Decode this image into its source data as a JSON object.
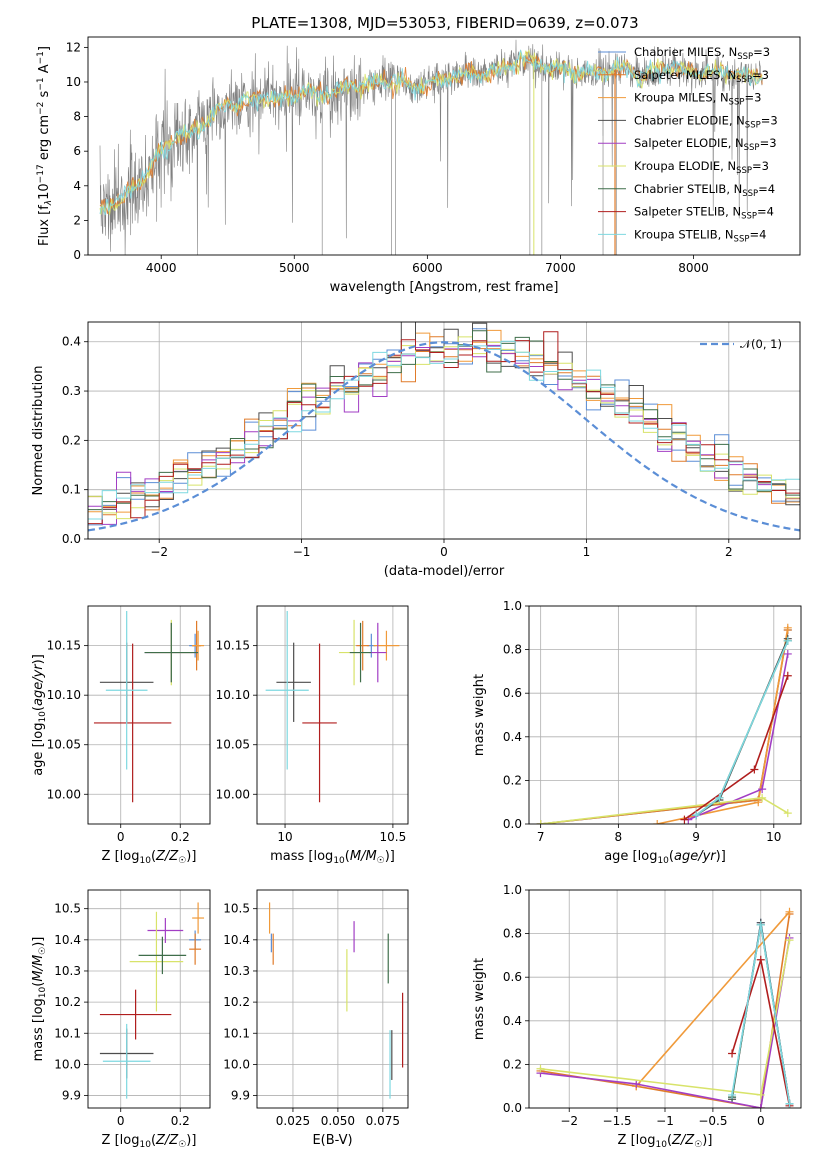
{
  "figure": {
    "title": "PLATE=1308, MJD=53053, FIBERID=0639, z=0.073"
  },
  "series": [
    {
      "name": "Chabrier MILES, N$_{SSP}$=3",
      "color": "#5b8ed6"
    },
    {
      "name": "Salpeter MILES, N$_{SSP}$=3",
      "color": "#e07b2a"
    },
    {
      "name": "Kroupa MILES, N$_{SSP}$=3",
      "color": "#f09a3a"
    },
    {
      "name": "Chabrier ELODIE, N$_{SSP}$=3",
      "color": "#4d4d4d"
    },
    {
      "name": "Salpeter ELODIE, N$_{SSP}$=3",
      "color": "#a23ec4"
    },
    {
      "name": "Kroupa ELODIE, N$_{SSP}$=3",
      "color": "#d8e36a"
    },
    {
      "name": "Chabrier STELIB, N$_{SSP}$=4",
      "color": "#3f6e4a"
    },
    {
      "name": "Salpeter STELIB, N$_{SSP}$=4",
      "color": "#b01e1e"
    },
    {
      "name": "Kroupa STELIB, N$_{SSP}$=4",
      "color": "#7ed8e0"
    }
  ],
  "legend_labels": [
    {
      "pre": "Chabrier MILES, N",
      "sub": "SSP",
      "post": "=3"
    },
    {
      "pre": "Salpeter MILES, N",
      "sub": "SSP",
      "post": "=3"
    },
    {
      "pre": "Kroupa MILES, N",
      "sub": "SSP",
      "post": "=3"
    },
    {
      "pre": "Chabrier ELODIE, N",
      "sub": "SSP",
      "post": "=3"
    },
    {
      "pre": "Salpeter ELODIE, N",
      "sub": "SSP",
      "post": "=3"
    },
    {
      "pre": "Kroupa ELODIE, N",
      "sub": "SSP",
      "post": "=3"
    },
    {
      "pre": "Chabrier STELIB, N",
      "sub": "SSP",
      "post": "=4"
    },
    {
      "pre": "Salpeter STELIB, N",
      "sub": "SSP",
      "post": "=4"
    },
    {
      "pre": "Kroupa STELIB, N",
      "sub": "SSP",
      "post": "=4"
    }
  ],
  "legend_hist": "𝒩(0, 1)",
  "chart_data": [
    {
      "id": "spectrum",
      "type": "line",
      "xlabel": "wavelength [Angstrom, rest frame]",
      "ylabel": "Flux [f_λ 10^-17 erg cm^-2 s^-1 A^-1]",
      "ylabel_parts": {
        "a": "Flux [f",
        "a_sub": "λ",
        "b": "10",
        "b_sup": "−17",
        "c": " erg cm",
        "c_sup": "−2",
        "d": " s",
        "d_sup": "−1",
        "e": " A",
        "e_sup": "−1",
        "f": "]"
      },
      "xlim": [
        3450,
        8800
      ],
      "ylim": [
        0,
        12.6
      ],
      "xticks": [
        4000,
        5000,
        6000,
        7000,
        8000
      ],
      "yticks": [
        0,
        2,
        4,
        6,
        8,
        10,
        12
      ],
      "observed_color": "#808080",
      "model_continuum": [
        [
          3540,
          2.6
        ],
        [
          3600,
          2.9
        ],
        [
          3700,
          3.2
        ],
        [
          3800,
          3.9
        ],
        [
          3900,
          4.9
        ],
        [
          3950,
          5.4
        ],
        [
          4000,
          6.1
        ],
        [
          4100,
          6.8
        ],
        [
          4200,
          7.0
        ],
        [
          4300,
          7.4
        ],
        [
          4400,
          8.2
        ],
        [
          4500,
          8.7
        ],
        [
          4600,
          8.9
        ],
        [
          4700,
          9.0
        ],
        [
          4800,
          9.1
        ],
        [
          4900,
          8.9
        ],
        [
          5000,
          9.3
        ],
        [
          5100,
          9.4
        ],
        [
          5200,
          9.1
        ],
        [
          5300,
          9.5
        ],
        [
          5400,
          9.7
        ],
        [
          5500,
          9.7
        ],
        [
          5600,
          9.9
        ],
        [
          5700,
          10.1
        ],
        [
          5800,
          10.0
        ],
        [
          5900,
          9.6
        ],
        [
          6000,
          9.9
        ],
        [
          6100,
          10.1
        ],
        [
          6200,
          10.3
        ],
        [
          6300,
          10.4
        ],
        [
          6400,
          10.5
        ],
        [
          6500,
          10.6
        ],
        [
          6600,
          10.9
        ],
        [
          6700,
          11.3
        ],
        [
          6800,
          11.1
        ],
        [
          6900,
          10.9
        ],
        [
          7000,
          10.7
        ],
        [
          7100,
          10.6
        ],
        [
          7200,
          10.5
        ],
        [
          7300,
          10.6
        ],
        [
          7400,
          10.7
        ],
        [
          7500,
          10.8
        ],
        [
          7600,
          10.3
        ],
        [
          7700,
          10.6
        ],
        [
          7800,
          10.8
        ],
        [
          7900,
          10.7
        ],
        [
          8000,
          10.6
        ],
        [
          8100,
          10.5
        ],
        [
          8200,
          10.5
        ],
        [
          8300,
          10.4
        ],
        [
          8400,
          10.3
        ],
        [
          8500,
          10.3
        ]
      ]
    },
    {
      "id": "residuals",
      "type": "histogram",
      "xlabel": "(data-model)/error",
      "ylabel": "Normed distribution",
      "xlim": [
        -2.5,
        2.5
      ],
      "ylim": [
        0,
        0.44
      ],
      "xticks": [
        -2,
        -1,
        0,
        1,
        2
      ],
      "yticks": [
        0.0,
        0.1,
        0.2,
        0.3,
        0.4
      ],
      "bin_width": 0.1,
      "reference_curve": {
        "mean": 0,
        "sigma": 1,
        "color": "#5b8ed6"
      }
    },
    {
      "id": "age_vs_Z",
      "type": "scatter",
      "xlabel": "Z [log10(Z/Z☉)]",
      "ylabel": "age [log10(age/yr)]",
      "xlim": [
        -0.11,
        0.3
      ],
      "ylim": [
        9.97,
        10.19
      ],
      "xticks": [
        0.0,
        0.2
      ],
      "yticks": [
        10.0,
        10.05,
        10.1,
        10.15
      ],
      "points": [
        {
          "s": 0,
          "x": 0.25,
          "y": 10.15,
          "xerr": 0.02,
          "yerr": 0.012
        },
        {
          "s": 1,
          "x": 0.255,
          "y": 10.15,
          "xerr": 0.015,
          "yerr": 0.025
        },
        {
          "s": 2,
          "x": 0.26,
          "y": 10.15,
          "xerr": 0.02,
          "yerr": 0.015
        },
        {
          "s": 3,
          "x": 0.02,
          "y": 10.113,
          "xerr": 0.09,
          "yerr": 0.04
        },
        {
          "s": 4,
          "x": 0.17,
          "y": 10.143,
          "xerr": 0.09,
          "yerr": 0.03
        },
        {
          "s": 5,
          "x": 0.17,
          "y": 10.143,
          "xerr": 0.07,
          "yerr": 0.033
        },
        {
          "s": 6,
          "x": 0.17,
          "y": 10.143,
          "xerr": 0.09,
          "yerr": 0.03
        },
        {
          "s": 7,
          "x": 0.04,
          "y": 10.072,
          "xerr": 0.13,
          "yerr": 0.08
        },
        {
          "s": 8,
          "x": 0.02,
          "y": 10.105,
          "xerr": 0.07,
          "yerr": 0.08
        }
      ]
    },
    {
      "id": "age_vs_mass",
      "type": "scatter",
      "xlabel": "mass [log10(M/M☉)]",
      "ylabel": "",
      "xlim": [
        9.87,
        10.57
      ],
      "ylim": [
        9.97,
        10.19
      ],
      "xticks": [
        10.0,
        10.5
      ],
      "yticks": [
        10.0,
        10.05,
        10.1,
        10.15
      ],
      "points": [
        {
          "s": 0,
          "x": 10.4,
          "y": 10.15,
          "xerr": 0.02,
          "yerr": 0.012
        },
        {
          "s": 1,
          "x": 10.36,
          "y": 10.15,
          "xerr": 0.03,
          "yerr": 0.025
        },
        {
          "s": 2,
          "x": 10.47,
          "y": 10.15,
          "xerr": 0.06,
          "yerr": 0.015
        },
        {
          "s": 3,
          "x": 10.04,
          "y": 10.113,
          "xerr": 0.08,
          "yerr": 0.04
        },
        {
          "s": 4,
          "x": 10.43,
          "y": 10.143,
          "xerr": 0.04,
          "yerr": 0.03
        },
        {
          "s": 5,
          "x": 10.32,
          "y": 10.143,
          "xerr": 0.07,
          "yerr": 0.033
        },
        {
          "s": 6,
          "x": 10.35,
          "y": 10.143,
          "xerr": 0.05,
          "yerr": 0.03
        },
        {
          "s": 7,
          "x": 10.16,
          "y": 10.072,
          "xerr": 0.08,
          "yerr": 0.08
        },
        {
          "s": 8,
          "x": 10.01,
          "y": 10.105,
          "xerr": 0.1,
          "yerr": 0.08
        }
      ]
    },
    {
      "id": "massweight_vs_age",
      "type": "line",
      "xlabel": "age [log10(age/yr)]",
      "ylabel": "mass weight",
      "xlim": [
        6.85,
        10.35
      ],
      "ylim": [
        0,
        1
      ],
      "xticks": [
        7,
        8,
        9,
        10
      ],
      "yticks": [
        0.0,
        0.2,
        0.4,
        0.6,
        0.8,
        1.0
      ],
      "lines": [
        {
          "s": 0,
          "pts": [
            [
              7.0,
              0.0
            ],
            [
              9.8,
              0.11
            ],
            [
              10.18,
              0.89
            ]
          ]
        },
        {
          "s": 1,
          "pts": [
            [
              7.0,
              0.0
            ],
            [
              9.8,
              0.11
            ],
            [
              10.18,
              0.89
            ]
          ]
        },
        {
          "s": 2,
          "pts": [
            [
              8.5,
              0.0
            ],
            [
              9.8,
              0.1
            ],
            [
              10.18,
              0.9
            ]
          ]
        },
        {
          "s": 3,
          "pts": [
            [
              9.0,
              0.04
            ],
            [
              9.3,
              0.11
            ],
            [
              10.18,
              0.85
            ]
          ]
        },
        {
          "s": 4,
          "pts": [
            [
              8.9,
              0.02
            ],
            [
              9.85,
              0.16
            ],
            [
              10.18,
              0.78
            ]
          ]
        },
        {
          "s": 5,
          "pts": [
            [
              7.0,
              0.0
            ],
            [
              9.85,
              0.12
            ],
            [
              10.18,
              0.05
            ]
          ]
        },
        {
          "s": 6,
          "pts": [
            [
              9.0,
              0.04
            ],
            [
              9.3,
              0.12
            ],
            [
              10.18,
              0.84
            ]
          ]
        },
        {
          "s": 7,
          "pts": [
            [
              8.85,
              0.02
            ],
            [
              9.75,
              0.25
            ],
            [
              10.18,
              0.68
            ]
          ]
        },
        {
          "s": 8,
          "pts": [
            [
              9.0,
              0.04
            ],
            [
              9.3,
              0.12
            ],
            [
              10.18,
              0.84
            ]
          ]
        }
      ]
    },
    {
      "id": "mass_vs_Z",
      "type": "scatter",
      "xlabel": "Z [log10(Z/Z☉)]",
      "ylabel": "mass [log10(M/M☉)]",
      "xlim": [
        -0.11,
        0.3
      ],
      "ylim": [
        9.86,
        10.56
      ],
      "xticks": [
        0.0,
        0.2
      ],
      "yticks": [
        9.9,
        10.0,
        10.1,
        10.2,
        10.3,
        10.4,
        10.5
      ],
      "points": [
        {
          "s": 0,
          "x": 0.25,
          "y": 10.4,
          "xerr": 0.02,
          "yerr": 0.03
        },
        {
          "s": 1,
          "x": 0.25,
          "y": 10.37,
          "xerr": 0.02,
          "yerr": 0.05
        },
        {
          "s": 2,
          "x": 0.26,
          "y": 10.47,
          "xerr": 0.02,
          "yerr": 0.05
        },
        {
          "s": 3,
          "x": 0.02,
          "y": 10.035,
          "xerr": 0.09,
          "yerr": 0.08
        },
        {
          "s": 4,
          "x": 0.15,
          "y": 10.43,
          "xerr": 0.06,
          "yerr": 0.04
        },
        {
          "s": 5,
          "x": 0.12,
          "y": 10.33,
          "xerr": 0.09,
          "yerr": 0.16
        },
        {
          "s": 6,
          "x": 0.14,
          "y": 10.35,
          "xerr": 0.08,
          "yerr": 0.06
        },
        {
          "s": 7,
          "x": 0.05,
          "y": 10.16,
          "xerr": 0.12,
          "yerr": 0.08
        },
        {
          "s": 8,
          "x": 0.02,
          "y": 10.01,
          "xerr": 0.08,
          "yerr": 0.12
        }
      ]
    },
    {
      "id": "mass_vs_EBV",
      "type": "scatter",
      "xlabel": "E(B-V)",
      "ylabel": "",
      "xlim": [
        0.005,
        0.089
      ],
      "ylim": [
        9.86,
        10.56
      ],
      "xticks": [
        0.025,
        0.05,
        0.075
      ],
      "xticklabels": [
        "0.025",
        "0.050",
        "0.075"
      ],
      "yticks": [
        9.9,
        10.0,
        10.1,
        10.2,
        10.3,
        10.4,
        10.5
      ],
      "points": [
        {
          "s": 0,
          "x": 0.013,
          "y": 10.39,
          "xerr": 0.0,
          "yerr": 0.03
        },
        {
          "s": 1,
          "x": 0.014,
          "y": 10.37,
          "xerr": 0.0,
          "yerr": 0.05
        },
        {
          "s": 2,
          "x": 0.012,
          "y": 10.47,
          "xerr": 0.0,
          "yerr": 0.05
        },
        {
          "s": 3,
          "x": 0.08,
          "y": 10.03,
          "xerr": 0.0,
          "yerr": 0.08
        },
        {
          "s": 4,
          "x": 0.059,
          "y": 10.41,
          "xerr": 0.0,
          "yerr": 0.05
        },
        {
          "s": 5,
          "x": 0.055,
          "y": 10.27,
          "xerr": 0.0,
          "yerr": 0.1
        },
        {
          "s": 6,
          "x": 0.078,
          "y": 10.34,
          "xerr": 0.0,
          "yerr": 0.08
        },
        {
          "s": 7,
          "x": 0.086,
          "y": 10.11,
          "xerr": 0.0,
          "yerr": 0.12
        },
        {
          "s": 8,
          "x": 0.079,
          "y": 10.0,
          "xerr": 0.0,
          "yerr": 0.11
        }
      ]
    },
    {
      "id": "massweight_vs_Z",
      "type": "line",
      "xlabel": "Z [log10(Z/Z☉)]",
      "ylabel": "mass weight",
      "xlim": [
        -2.42,
        0.42
      ],
      "ylim": [
        0,
        1
      ],
      "xticks": [
        -2.0,
        -1.5,
        -1.0,
        -0.5,
        0.0
      ],
      "yticks": [
        0.0,
        0.2,
        0.4,
        0.6,
        0.8,
        1.0
      ],
      "lines": [
        {
          "s": 0,
          "pts": [
            [
              -0.3,
              0.05
            ],
            [
              0.0,
              0.85
            ],
            [
              0.3,
              0.02
            ]
          ]
        },
        {
          "s": 1,
          "pts": [
            [
              -2.3,
              0.17
            ],
            [
              -1.3,
              0.1
            ],
            [
              0.0,
              0.0
            ],
            [
              0.3,
              0.89
            ]
          ]
        },
        {
          "s": 2,
          "pts": [
            [
              -1.3,
              0.1
            ],
            [
              0.3,
              0.9
            ]
          ]
        },
        {
          "s": 3,
          "pts": [
            [
              -0.3,
              0.04
            ],
            [
              0.0,
              0.85
            ],
            [
              0.3,
              0.02
            ]
          ]
        },
        {
          "s": 4,
          "pts": [
            [
              -2.3,
              0.16
            ],
            [
              -1.3,
              0.11
            ],
            [
              0.0,
              0.0
            ],
            [
              0.3,
              0.78
            ]
          ]
        },
        {
          "s": 5,
          "pts": [
            [
              -2.3,
              0.18
            ],
            [
              0.0,
              0.06
            ],
            [
              0.3,
              0.77
            ]
          ]
        },
        {
          "s": 6,
          "pts": [
            [
              -0.3,
              0.05
            ],
            [
              0.0,
              0.84
            ],
            [
              0.3,
              0.02
            ]
          ]
        },
        {
          "s": 7,
          "pts": [
            [
              -0.3,
              0.25
            ],
            [
              0.0,
              0.68
            ],
            [
              0.3,
              0.01
            ]
          ]
        },
        {
          "s": 8,
          "pts": [
            [
              -0.3,
              0.06
            ],
            [
              0.0,
              0.84
            ],
            [
              0.3,
              0.02
            ]
          ]
        }
      ]
    }
  ]
}
